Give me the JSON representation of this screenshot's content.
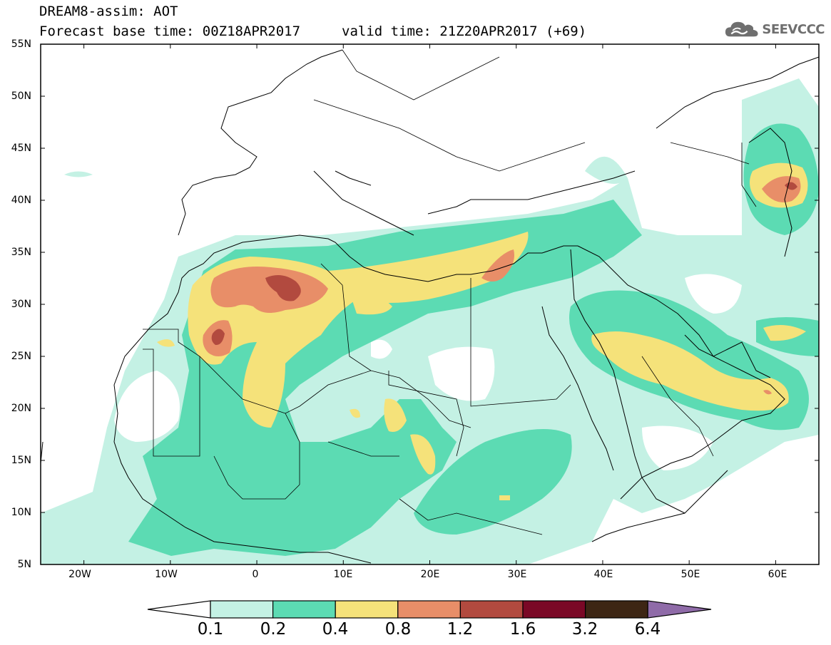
{
  "title": {
    "line1": "DREAM8-assim: AOT",
    "line2_base": "Forecast base time: 00Z18APR2017",
    "line2_valid": "valid time: 21Z20APR2017 (+69)"
  },
  "logo": {
    "text": "SEEVCCC",
    "icon": "cloud-icon"
  },
  "map": {
    "lat_range": [
      5,
      55
    ],
    "lon_range": [
      -25,
      65
    ],
    "lat_labels": [
      "55N",
      "50N",
      "45N",
      "40N",
      "35N",
      "30N",
      "25N",
      "20N",
      "15N",
      "10N",
      "5N"
    ],
    "lon_labels": [
      "20W",
      "10W",
      "0",
      "10E",
      "20E",
      "30E",
      "40E",
      "50E",
      "60E"
    ]
  },
  "colorbar": {
    "labels": [
      "0.1",
      "0.2",
      "0.4",
      "0.8",
      "1.2",
      "1.6",
      "3.2",
      "6.4"
    ],
    "colors": [
      "#ffffff",
      "#c4f1e4",
      "#5cdbb3",
      "#f5e27a",
      "#e88e68",
      "#b24a3f",
      "#7a0826",
      "#3d2614",
      "#8f6ba8"
    ]
  }
}
